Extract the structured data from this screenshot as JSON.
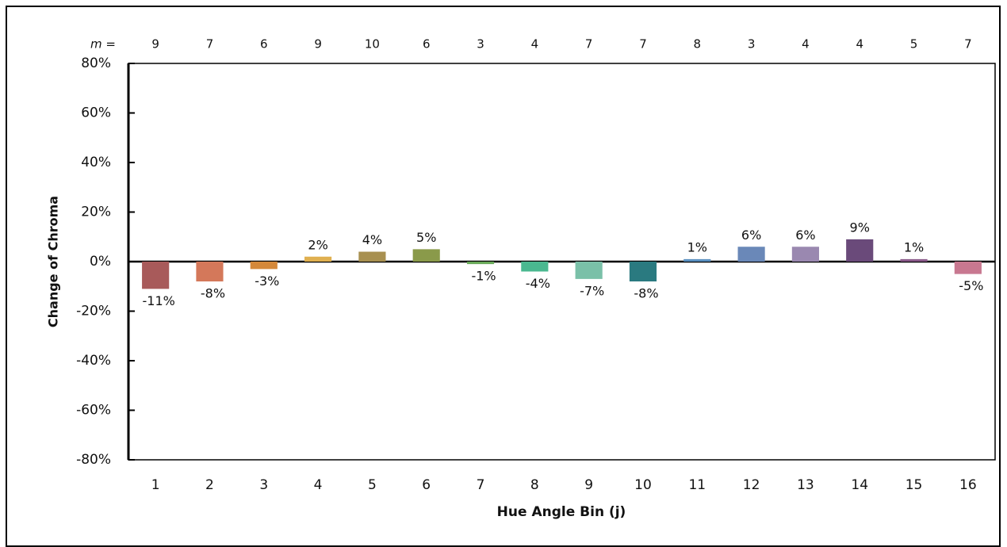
{
  "chart_data": {
    "type": "bar",
    "y_label": "Change of Chroma",
    "x_label": "Hue Angle Bin (j)",
    "top_label": "m =",
    "top_values": [
      9,
      7,
      6,
      9,
      10,
      6,
      3,
      4,
      7,
      7,
      8,
      3,
      4,
      4,
      5,
      7
    ],
    "categories": [
      "1",
      "2",
      "3",
      "4",
      "5",
      "6",
      "7",
      "8",
      "9",
      "10",
      "11",
      "12",
      "13",
      "14",
      "15",
      "16"
    ],
    "values": [
      -11,
      -8,
      -3,
      2,
      4,
      5,
      -1,
      -4,
      -7,
      -8,
      1,
      6,
      6,
      9,
      1,
      -5
    ],
    "value_labels": [
      "-11%",
      "-8%",
      "-3%",
      "2%",
      "4%",
      "5%",
      "-1%",
      "-4%",
      "-7%",
      "-8%",
      "1%",
      "6%",
      "6%",
      "9%",
      "1%",
      "-5%"
    ],
    "colors": [
      "#a85a5a",
      "#d4785a",
      "#d4883a",
      "#e0b050",
      "#a89050",
      "#8a9a4a",
      "#6aaa5a",
      "#4ab890",
      "#7ac0a8",
      "#2a7a80",
      "#5a90c0",
      "#6a88b8",
      "#9a88b0",
      "#6a4a7a",
      "#8a5a8a",
      "#c87890"
    ],
    "ylim": [
      -80,
      80
    ],
    "yticks": [
      {
        "value": -80,
        "label": "-80%"
      },
      {
        "value": -60,
        "label": "-60%"
      },
      {
        "value": -40,
        "label": "-40%"
      },
      {
        "value": -20,
        "label": "-20%"
      },
      {
        "value": 0,
        "label": "0%"
      },
      {
        "value": 20,
        "label": "20%"
      },
      {
        "value": 40,
        "label": "40%"
      },
      {
        "value": 60,
        "label": "60%"
      },
      {
        "value": 80,
        "label": "80%"
      }
    ],
    "grid": false
  }
}
